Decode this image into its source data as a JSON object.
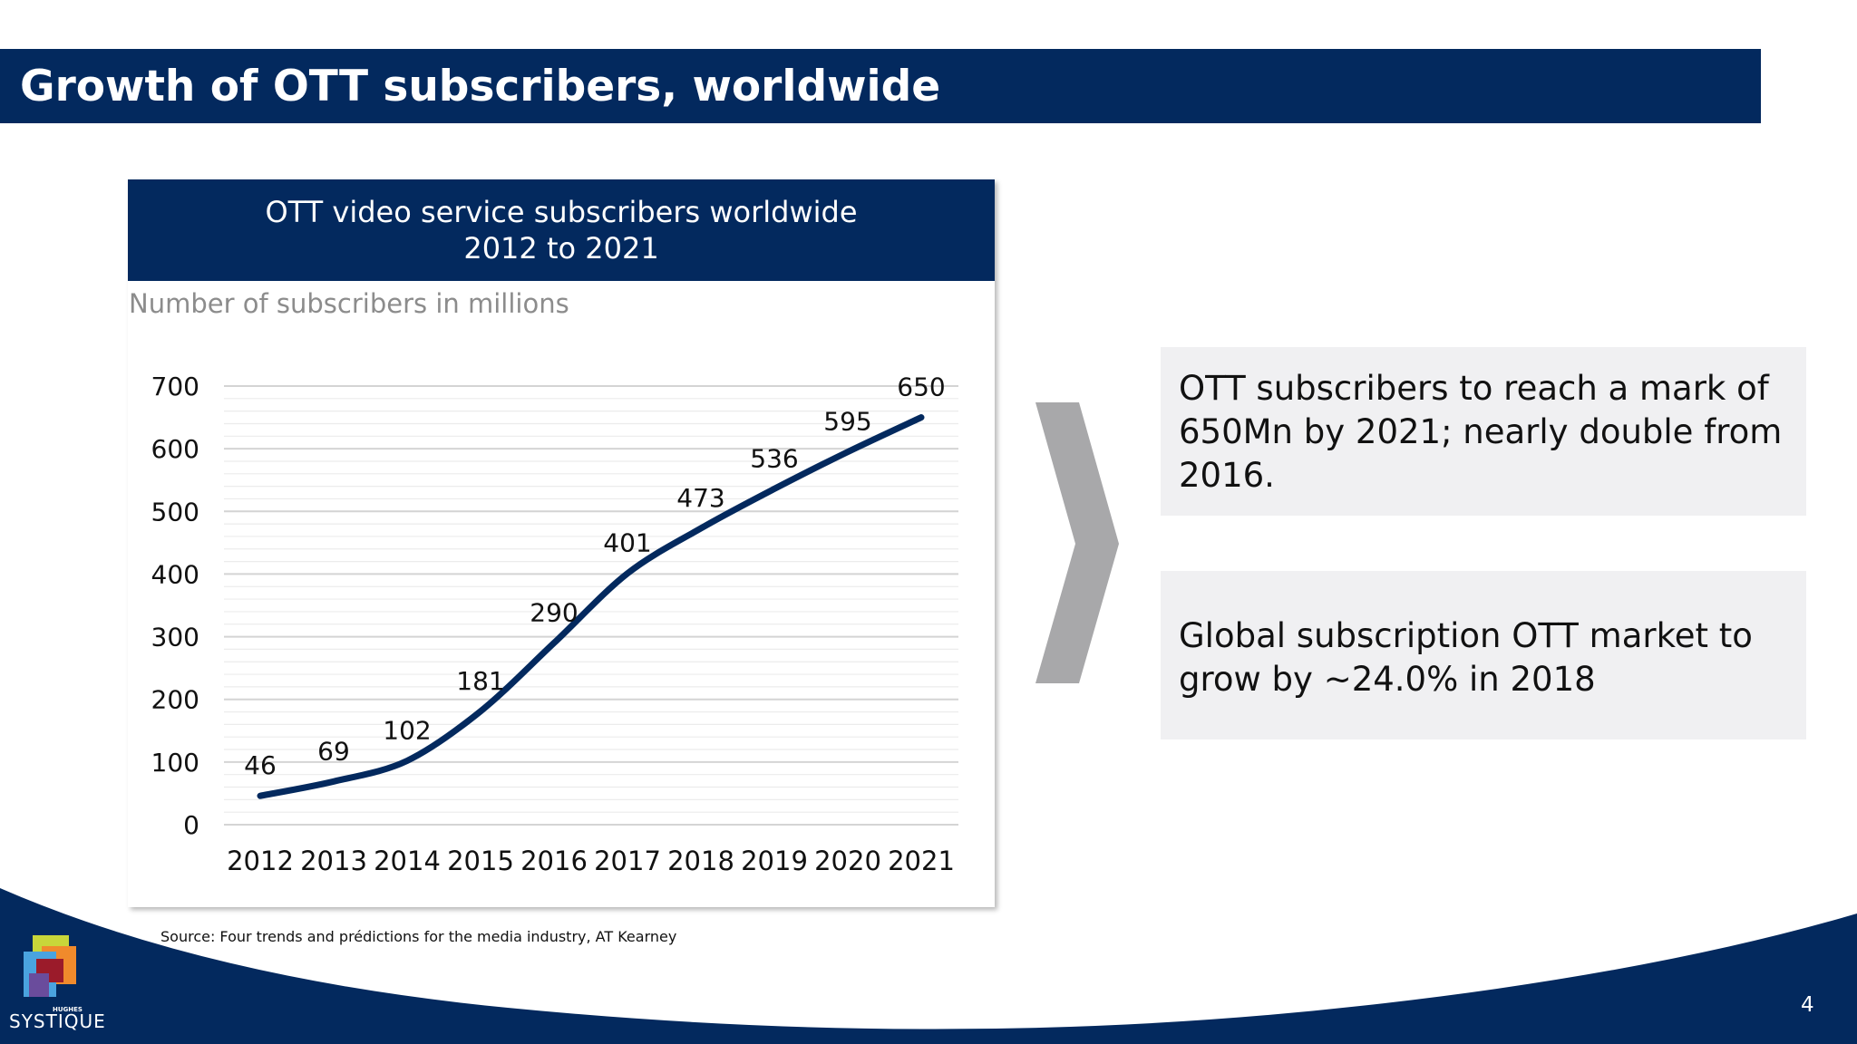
{
  "slide": {
    "title": "Growth of OTT subscribers, worldwide",
    "page_number": "4",
    "source": "Source: Four trends and prédictions for the media industry, AT Kearney"
  },
  "chart_header": {
    "line1": "OTT video service subscribers worldwide",
    "line2": "2012 to 2021"
  },
  "chart_data": {
    "type": "line",
    "title": "OTT video service subscribers worldwide 2012 to 2021",
    "ylabel": "Number of subscribers in millions",
    "xlabel": "",
    "categories": [
      "2012",
      "2013",
      "2014",
      "2015",
      "2016",
      "2017",
      "2018",
      "2019",
      "2020",
      "2021"
    ],
    "series": [
      {
        "values": [
          46,
          69,
          102,
          181,
          290,
          401,
          473,
          536,
          595,
          650
        ]
      }
    ],
    "ylim": [
      0,
      700
    ],
    "yticks": [
      0,
      100,
      200,
      300,
      400,
      500,
      600,
      700
    ],
    "data_labels": true,
    "grid": true,
    "legend": "none",
    "line_color": "#03295e"
  },
  "notes": [
    {
      "text": "OTT subscribers to reach a mark of 650Mn by 2021; nearly double from 2016."
    },
    {
      "text": "Global subscription OTT market to grow by ~24.0% in 2018"
    }
  ],
  "logo": {
    "text": "SYSTIQUE",
    "small_text": "HUGHES"
  },
  "colors": {
    "brand_navy": "#03295e",
    "note_background": "#f0f0f2",
    "chevron_gray": "#a8a8aa"
  }
}
